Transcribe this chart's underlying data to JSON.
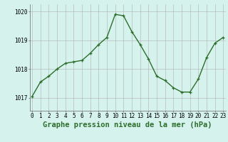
{
  "x": [
    0,
    1,
    2,
    3,
    4,
    5,
    6,
    7,
    8,
    9,
    10,
    11,
    12,
    13,
    14,
    15,
    16,
    17,
    18,
    19,
    20,
    21,
    22,
    23
  ],
  "y": [
    1017.05,
    1017.55,
    1017.75,
    1018.0,
    1018.2,
    1018.25,
    1018.3,
    1018.55,
    1018.85,
    1019.1,
    1019.9,
    1019.85,
    1019.3,
    1018.85,
    1018.35,
    1017.75,
    1017.6,
    1017.35,
    1017.2,
    1017.2,
    1017.65,
    1018.4,
    1018.9,
    1019.1
  ],
  "line_color": "#2d6e2d",
  "marker": "+",
  "marker_size": 3.5,
  "bg_color": "#d5f2ec",
  "grid_color": "#b0b0b0",
  "xlabel": "Graphe pression niveau de la mer (hPa)",
  "xlabel_fontsize": 7.5,
  "xlabel_color": "#2d6e2d",
  "ytick_labels": [
    "1017",
    "1018",
    "1019",
    "1020"
  ],
  "ytick_values": [
    1017,
    1018,
    1019,
    1020
  ],
  "ylim": [
    1016.55,
    1020.25
  ],
  "xlim": [
    -0.3,
    23.3
  ],
  "xtick_labels": [
    "0",
    "1",
    "2",
    "3",
    "4",
    "5",
    "6",
    "7",
    "8",
    "9",
    "10",
    "11",
    "12",
    "13",
    "14",
    "15",
    "16",
    "17",
    "18",
    "19",
    "20",
    "21",
    "22",
    "23"
  ],
  "tick_fontsize": 5.5,
  "linewidth": 1.0,
  "markeredgewidth": 0.9
}
